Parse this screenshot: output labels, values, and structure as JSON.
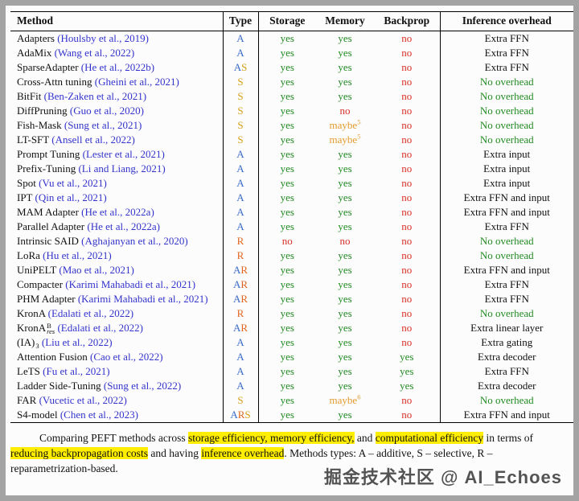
{
  "table": {
    "headers": [
      "Method",
      "Type",
      "Storage",
      "Memory",
      "Backprop",
      "Inference overhead"
    ],
    "type_colors": {
      "A": "#3a6bc7",
      "S": "#d4a017",
      "R": "#e2651f"
    },
    "value_colors": {
      "yes": "#228b22",
      "no": "#d93025",
      "maybe": "#e49b2d"
    },
    "overhead_good": "No overhead",
    "overhead_good_color": "#228b22",
    "rows": [
      {
        "method": "Adapters",
        "cite": "(Houlsby et al., 2019)",
        "type": "A",
        "storage": "yes",
        "memory": "yes",
        "backprop": "no",
        "overhead": "Extra FFN"
      },
      {
        "method": "AdaMix",
        "cite": "(Wang et al., 2022)",
        "type": "A",
        "storage": "yes",
        "memory": "yes",
        "backprop": "no",
        "overhead": "Extra FFN"
      },
      {
        "method": "SparseAdapter",
        "cite": "(He et al., 2022b)",
        "type": "AS",
        "storage": "yes",
        "memory": "yes",
        "backprop": "no",
        "overhead": "Extra FFN"
      },
      {
        "method": "Cross-Attn tuning",
        "cite": "(Gheini et al., 2021)",
        "type": "S",
        "storage": "yes",
        "memory": "yes",
        "backprop": "no",
        "overhead": "No overhead"
      },
      {
        "method": "BitFit",
        "cite": "(Ben-Zaken et al., 2021)",
        "type": "S",
        "storage": "yes",
        "memory": "yes",
        "backprop": "no",
        "overhead": "No overhead"
      },
      {
        "method": "DiffPruning",
        "cite": "(Guo et al., 2020)",
        "type": "S",
        "storage": "yes",
        "memory": "no",
        "backprop": "no",
        "overhead": "No overhead"
      },
      {
        "method": "Fish-Mask",
        "cite": "(Sung et al., 2021)",
        "type": "S",
        "storage": "yes",
        "memory": "maybe",
        "memory_sup": "5",
        "backprop": "no",
        "overhead": "No overhead"
      },
      {
        "method": "LT-SFT",
        "cite": "(Ansell et al., 2022)",
        "type": "S",
        "storage": "yes",
        "memory": "maybe",
        "memory_sup": "5",
        "backprop": "no",
        "overhead": "No overhead"
      },
      {
        "method": "Prompt Tuning",
        "cite": "(Lester et al., 2021)",
        "type": "A",
        "storage": "yes",
        "memory": "yes",
        "backprop": "no",
        "overhead": "Extra input"
      },
      {
        "method": "Prefix-Tuning",
        "cite": "(Li and Liang, 2021)",
        "type": "A",
        "storage": "yes",
        "memory": "yes",
        "backprop": "no",
        "overhead": "Extra input"
      },
      {
        "method": "Spot",
        "cite": "(Vu et al., 2021)",
        "type": "A",
        "storage": "yes",
        "memory": "yes",
        "backprop": "no",
        "overhead": "Extra input"
      },
      {
        "method": "IPT",
        "cite": "(Qin et al., 2021)",
        "type": "A",
        "storage": "yes",
        "memory": "yes",
        "backprop": "no",
        "overhead": "Extra FFN and input"
      },
      {
        "method": "MAM Adapter",
        "cite": "(He et al., 2022a)",
        "type": "A",
        "storage": "yes",
        "memory": "yes",
        "backprop": "no",
        "overhead": "Extra FFN and input"
      },
      {
        "method": "Parallel Adapter",
        "cite": "(He et al., 2022a)",
        "type": "A",
        "storage": "yes",
        "memory": "yes",
        "backprop": "no",
        "overhead": "Extra FFN"
      },
      {
        "method": "Intrinsic SAID",
        "cite": "(Aghajanyan et al., 2020)",
        "type": "R",
        "storage": "no",
        "memory": "no",
        "backprop": "no",
        "overhead": "No overhead"
      },
      {
        "method": "LoRa",
        "cite": "(Hu et al., 2021)",
        "type": "R",
        "storage": "yes",
        "memory": "yes",
        "backprop": "no",
        "overhead": "No overhead"
      },
      {
        "method": "UniPELT",
        "cite": "(Mao et al., 2021)",
        "type": "AR",
        "storage": "yes",
        "memory": "yes",
        "backprop": "no",
        "overhead": "Extra FFN and input"
      },
      {
        "method": "Compacter",
        "cite": "(Karimi Mahabadi et al., 2021)",
        "type": "AR",
        "storage": "yes",
        "memory": "yes",
        "backprop": "no",
        "overhead": "Extra FFN"
      },
      {
        "method": "PHM Adapter",
        "cite": "(Karimi Mahabadi et al., 2021)",
        "type": "AR",
        "storage": "yes",
        "memory": "yes",
        "backprop": "no",
        "overhead": "Extra FFN"
      },
      {
        "method": "KronA",
        "cite": "(Edalati et al., 2022)",
        "type": "R",
        "storage": "yes",
        "memory": "yes",
        "backprop": "no",
        "overhead": "No overhead"
      },
      {
        "method": "KronA",
        "method_sup": "B",
        "method_sub": "res",
        "cite": "(Edalati et al., 2022)",
        "type": "AR",
        "storage": "yes",
        "memory": "yes",
        "backprop": "no",
        "overhead": "Extra linear layer"
      },
      {
        "method": "(IA)",
        "method_sup": "3",
        "cite": "(Liu et al., 2022)",
        "type": "A",
        "storage": "yes",
        "memory": "yes",
        "backprop": "no",
        "overhead": "Extra gating"
      },
      {
        "method": "Attention Fusion",
        "cite": "(Cao et al., 2022)",
        "type": "A",
        "storage": "yes",
        "memory": "yes",
        "backprop": "yes",
        "overhead": "Extra decoder"
      },
      {
        "method": "LeTS",
        "cite": "(Fu et al., 2021)",
        "type": "A",
        "storage": "yes",
        "memory": "yes",
        "backprop": "yes",
        "overhead": "Extra FFN"
      },
      {
        "method": "Ladder Side-Tuning",
        "cite": "(Sung et al., 2022)",
        "type": "A",
        "storage": "yes",
        "memory": "yes",
        "backprop": "yes",
        "overhead": "Extra decoder"
      },
      {
        "method": "FAR",
        "cite": "(Vucetic et al., 2022)",
        "type": "S",
        "storage": "yes",
        "memory": "maybe",
        "memory_sup": "6",
        "backprop": "no",
        "overhead": "No overhead"
      },
      {
        "method": "S4-model",
        "cite": "(Chen et al., 2023)",
        "type": "ARS",
        "storage": "yes",
        "memory": "yes",
        "backprop": "no",
        "overhead": "Extra FFN and input"
      }
    ]
  },
  "caption": {
    "segments": [
      {
        "text": "Comparing PEFT methods across ",
        "hl": false
      },
      {
        "text": "storage efficiency, memory efficiency,",
        "hl": true
      },
      {
        "text": " and ",
        "hl": false
      },
      {
        "text": "computational efficiency",
        "hl": true
      },
      {
        "text": " in terms of ",
        "hl": false
      },
      {
        "text": "reducing backpropagation costs",
        "hl": true
      },
      {
        "text": " and having ",
        "hl": false
      },
      {
        "text": "inference overhead",
        "hl": true
      },
      {
        "text": ". Methods types: A – additive, S – selective, R – reparametrization-based.",
        "hl": false
      }
    ]
  },
  "watermark": "掘金技术社区 @ AI_Echoes"
}
